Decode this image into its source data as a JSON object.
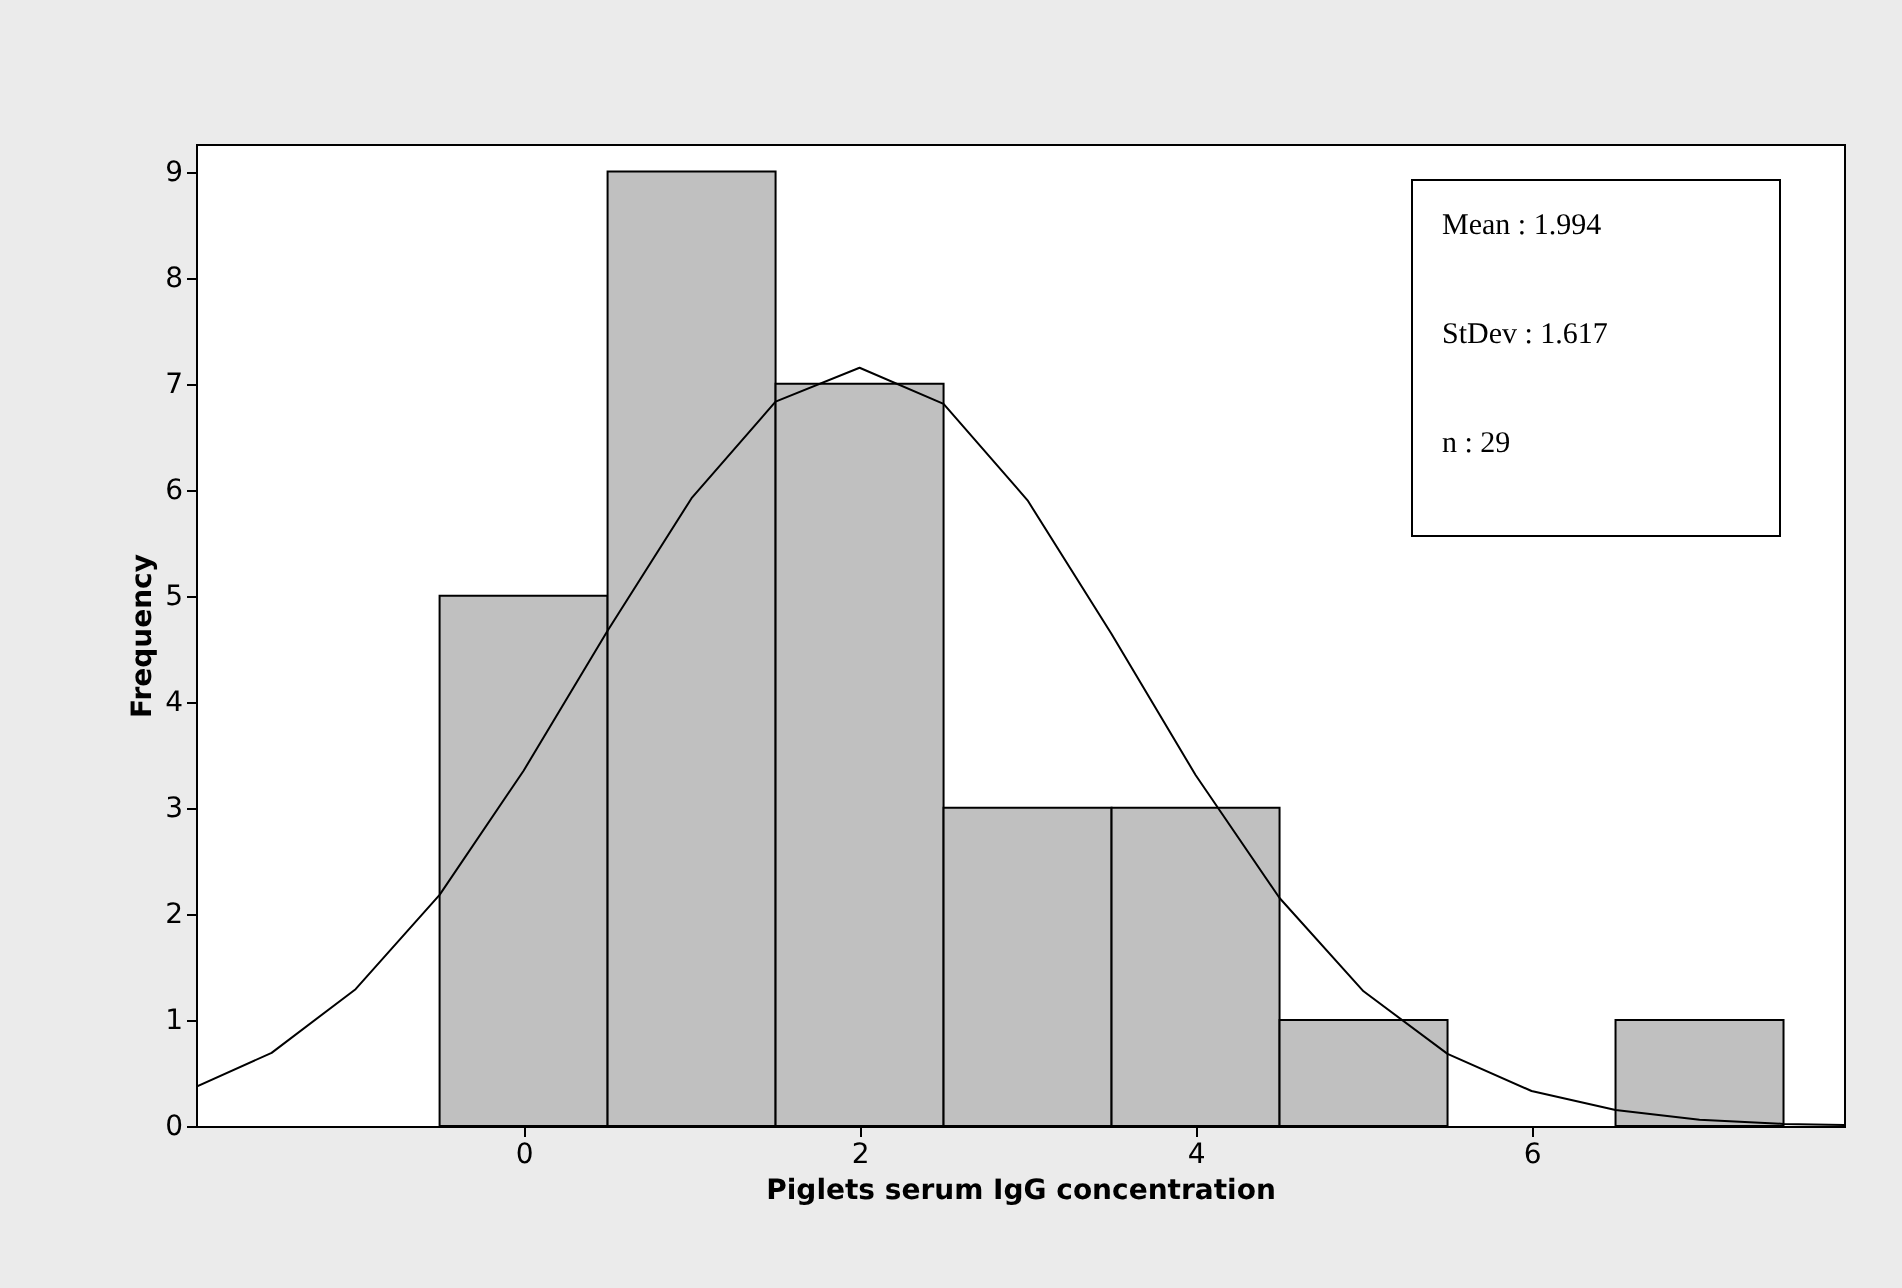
{
  "chart_data": {
    "type": "histogram",
    "xlabel": "Piglets serum IgG concentration",
    "ylabel": "Frequency",
    "bins": [
      -0.5,
      0.5,
      1.5,
      2.5,
      3.5,
      4.5,
      5.5,
      6.5,
      7.5
    ],
    "values": [
      5,
      9,
      7,
      3,
      3,
      1,
      0,
      1
    ],
    "color": "#c0c0c0",
    "series": [
      {
        "type": "line",
        "color": "#000000",
        "x": [
          -1.95,
          -1.5,
          -1,
          -0.5,
          0,
          0.5,
          1,
          1.5,
          2,
          2.5,
          3,
          3.5,
          4,
          4.5,
          5,
          5.5,
          6,
          6.5,
          7,
          7.5,
          7.86
        ],
        "values": [
          0.37,
          0.69,
          1.29,
          2.18,
          3.35,
          4.67,
          5.92,
          6.83,
          7.15,
          6.81,
          5.9,
          4.64,
          3.31,
          2.15,
          1.27,
          0.68,
          0.33,
          0.15,
          0.06,
          0.02,
          0.01
        ]
      }
    ],
    "xlim": [
      -1.95,
      7.86
    ],
    "xticks": [
      0,
      2,
      4,
      6
    ],
    "ylim": [
      0,
      9.26
    ],
    "yticks": [
      0,
      1,
      2,
      3,
      4,
      5,
      6,
      7,
      8,
      9
    ],
    "annotations": [
      "Mean : 1.994",
      "StDev : 1.617",
      "n : 29"
    ]
  }
}
